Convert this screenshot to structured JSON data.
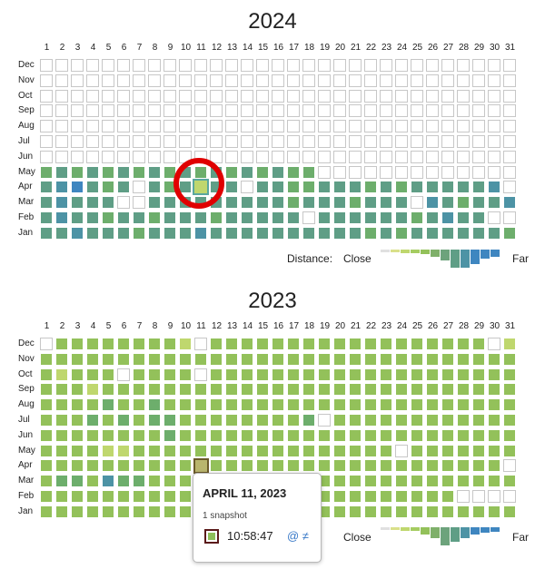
{
  "palette": {
    "empty": "#ffffff",
    "c1": "#bfd76e",
    "c2": "#93c15a",
    "c3": "#6dae6c",
    "c4": "#5f9e86",
    "c5": "#4d93a5",
    "c6": "#3f86c0"
  },
  "days": [
    "1",
    "2",
    "3",
    "4",
    "5",
    "6",
    "7",
    "8",
    "9",
    "10",
    "11",
    "12",
    "13",
    "14",
    "15",
    "16",
    "17",
    "18",
    "19",
    "20",
    "21",
    "22",
    "23",
    "24",
    "25",
    "26",
    "27",
    "28",
    "29",
    "30",
    "31"
  ],
  "months_top_to_bottom": [
    "Dec",
    "Nov",
    "Oct",
    "Sep",
    "Aug",
    "Jul",
    "Jun",
    "May",
    "Apr",
    "Mar",
    "Feb",
    "Jan"
  ],
  "legend": {
    "label": "Distance:",
    "close": "Close",
    "far": "Far",
    "bars": [
      "#e0e0e0",
      "#d9e08a",
      "#bfd76e",
      "#a5cc61",
      "#93c15a",
      "#7fb06a",
      "#6da37c",
      "#5f9e86",
      "#4d93a5",
      "#3f86c0"
    ]
  },
  "calendars": [
    {
      "year": "2024",
      "highlighted": "Apr 11",
      "grid": [
        "0000000000000000000000000000000",
        "0000000000000000000000000000000",
        "0000000000000000000000000000000",
        "0000000000000000000000000000000",
        "0000000000000000000000000000000",
        "0000000000000000000000000000000",
        "0000000000000000000000000000000",
        "3434343434343434330000000000000",
        "4564340434144044334443434444450",
        "4544400444444444344434440543445",
        "4544344344434444404444443454400",
        "4454443444544444444443434444443"
      ]
    },
    {
      "year": "2023",
      "selected": "Apr 11",
      "grid": [
        "0222222221022222222222222222201",
        "2222222222222222222222222222222",
        "2122202222022222222222222222222",
        "2221222222222222222222222222222",
        "2222322322222222222222222222222",
        "2223232332222222230222222222222",
        "2222222232222222222222222222222",
        "2222112222222222222222202222222",
        "2222222222C22222222222222222220",
        "2332533222222222222222222222222",
        "2222222222222222222222222220000",
        "2222222222222222222222222222222"
      ]
    }
  ],
  "tooltip": {
    "title": "APRIL 11, 2023",
    "count": "1 snapshot",
    "time": "10:58:47",
    "links": "@ ≠"
  }
}
